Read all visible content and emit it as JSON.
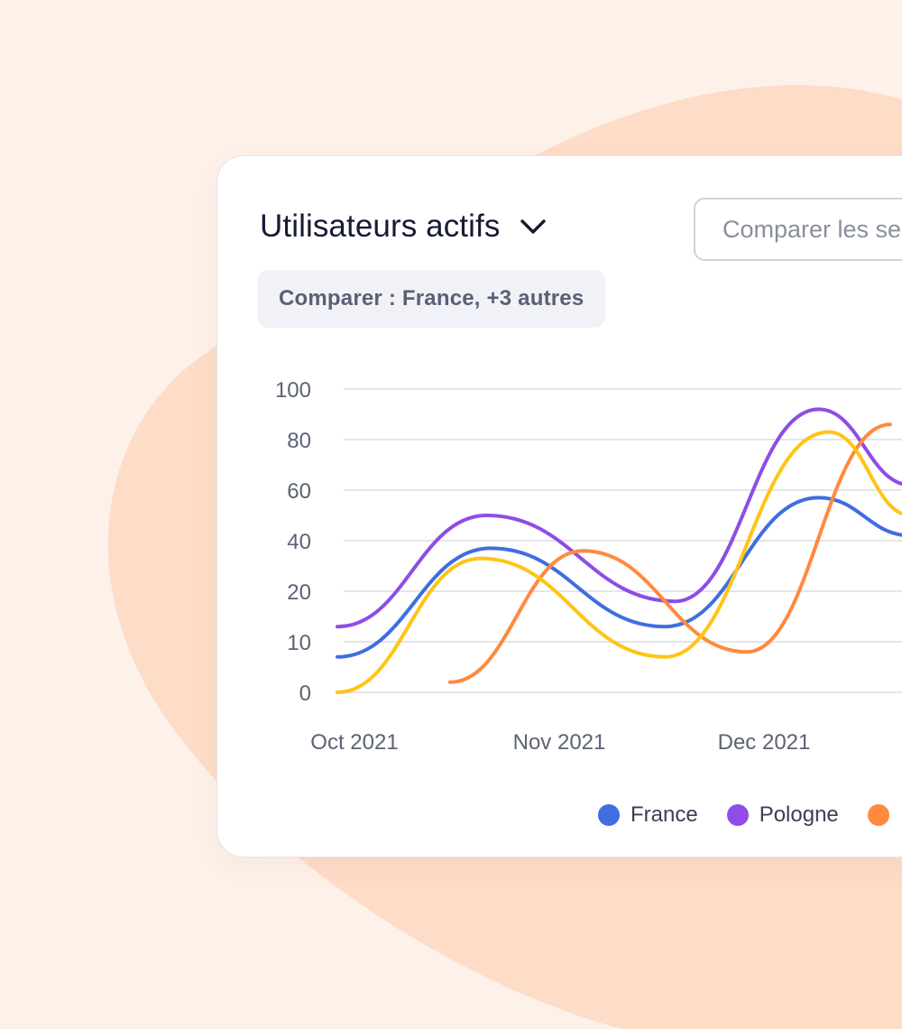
{
  "card": {
    "title": "Utilisateurs actifs",
    "compare_placeholder": "Comparer les segments",
    "compare_summary": "Comparer : France, +3 autres"
  },
  "colors": {
    "background": "#fef1e9",
    "blob": "#fddcc8",
    "France": "#3f6ee0",
    "Pologne": "#8e4de6",
    "Orange": "#ff8a3d",
    "Yellow": "#ffc415"
  },
  "chart_data": {
    "type": "line",
    "y_ticks": [
      "100",
      "80",
      "60",
      "40",
      "20",
      "10",
      "0"
    ],
    "x_ticks": [
      "Oct 2021",
      "Nov 2021",
      "Dec 2021"
    ],
    "series": [
      {
        "name": "France",
        "color": "#3f6ee0",
        "x": [
          0,
          0.75,
          1.6,
          2.35,
          2.8
        ],
        "y": [
          7,
          37,
          13,
          57,
          42
        ]
      },
      {
        "name": "Pologne",
        "color": "#8e4de6",
        "x": [
          0,
          0.73,
          1.65,
          2.35,
          2.8
        ],
        "y": [
          13,
          50,
          18,
          92,
          62
        ]
      },
      {
        "name": "",
        "color": "#ff8a3d",
        "x": [
          0.55,
          1.2,
          2.0,
          2.7
        ],
        "y": [
          2,
          36,
          8,
          86
        ]
      },
      {
        "name": "",
        "color": "#ffc415",
        "x": [
          0,
          0.7,
          1.6,
          2.4,
          2.8
        ],
        "y": [
          0,
          33,
          7,
          83,
          50
        ]
      }
    ],
    "legend": [
      "France",
      "Pologne"
    ]
  }
}
